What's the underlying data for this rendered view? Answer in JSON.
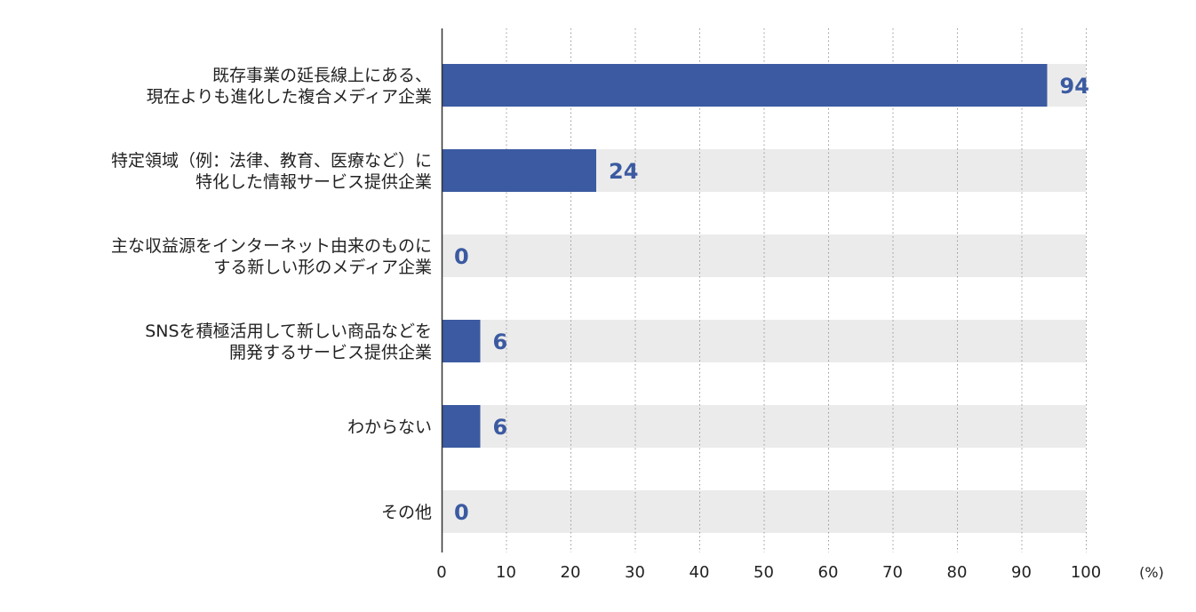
{
  "chart_data": {
    "type": "bar",
    "orientation": "horizontal",
    "categories": [
      [
        "既存事業の延長線上にある、",
        "現在よりも進化した複合メディア企業"
      ],
      [
        "特定領域（例：法律、教育、医療など）に",
        "特化した情報サービス提供企業"
      ],
      [
        "主な収益源をインターネット由来のものに",
        "する新しい形のメディア企業"
      ],
      [
        "SNSを積極活用して新しい商品などを",
        "開発するサービス提供企業"
      ],
      [
        "わからない"
      ],
      [
        "その他"
      ]
    ],
    "values": [
      94,
      24,
      0,
      6,
      6,
      0
    ],
    "value_labels": [
      "94",
      "24",
      "0",
      "6",
      "6",
      "0"
    ],
    "xlim": [
      0,
      100
    ],
    "xticks": [
      0,
      10,
      20,
      30,
      40,
      50,
      60,
      70,
      80,
      90,
      100
    ],
    "xtick_labels": [
      "0",
      "10",
      "20",
      "30",
      "40",
      "50",
      "60",
      "70",
      "80",
      "90",
      "100"
    ],
    "unit": "(%)",
    "grid": true,
    "grid_style": "dotted vertical",
    "colors": {
      "bar": "#3b5aa1",
      "track": "#ebebeb",
      "value_text": "#3b5aa1",
      "axis": "#333333",
      "grid": "#999999"
    }
  }
}
